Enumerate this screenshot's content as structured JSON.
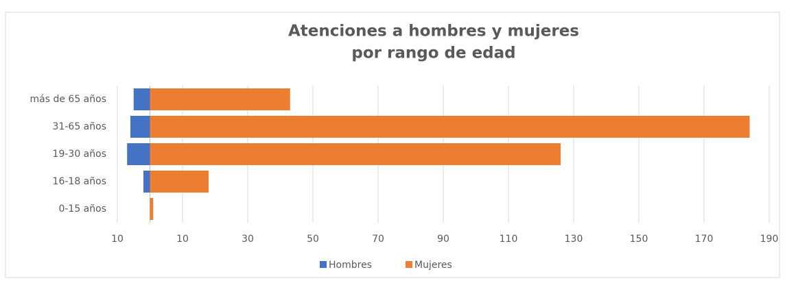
{
  "chart_data": {
    "type": "bar",
    "orientation": "horizontal",
    "title": [
      "Atenciones a hombres y mujeres",
      "por rango de edad"
    ],
    "categories": [
      "más de 65 años",
      "31-65 años",
      "19-30 años",
      "16-18 años",
      "0-15 años"
    ],
    "series": [
      {
        "name": "Hombres",
        "color": "#4472c4",
        "values": [
          -5,
          -6,
          -7,
          -2,
          0
        ]
      },
      {
        "name": "Mujeres",
        "color": "#ed7d31",
        "values": [
          43,
          184,
          126,
          18,
          1
        ]
      }
    ],
    "xlim": [
      -10,
      190
    ],
    "xticks": [
      {
        "value": -10,
        "label": "10"
      },
      10,
      30,
      50,
      70,
      90,
      110,
      130,
      150,
      170,
      190
    ],
    "grid": true,
    "legend": "bottom"
  }
}
